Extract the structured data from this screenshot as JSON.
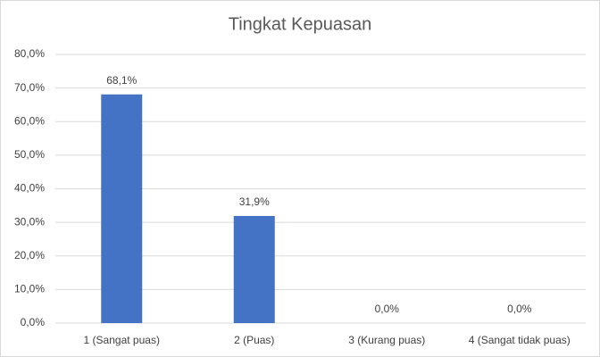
{
  "chart_data": {
    "type": "bar",
    "title": "Tingkat Kepuasan",
    "categories": [
      "1 (Sangat puas)",
      "2 (Puas)",
      "3 (Kurang puas)",
      "4 (Sangat tidak puas)"
    ],
    "values": [
      68.1,
      31.9,
      0,
      0
    ],
    "value_labels": [
      "68,1%",
      "31,9%",
      "0,0%",
      "0,0%"
    ],
    "color": "#4472c4",
    "ylim": [
      0,
      80
    ],
    "yticks": [
      {
        "value": 0,
        "label": "0,0%"
      },
      {
        "value": 10,
        "label": "10,0%"
      },
      {
        "value": 20,
        "label": "20,0%"
      },
      {
        "value": 30,
        "label": "30,0%"
      },
      {
        "value": 40,
        "label": "40,0%"
      },
      {
        "value": 50,
        "label": "50,0%"
      },
      {
        "value": 60,
        "label": "60,0%"
      },
      {
        "value": 70,
        "label": "70,0%"
      },
      {
        "value": 80,
        "label": "80,0%"
      }
    ],
    "grid": true
  }
}
